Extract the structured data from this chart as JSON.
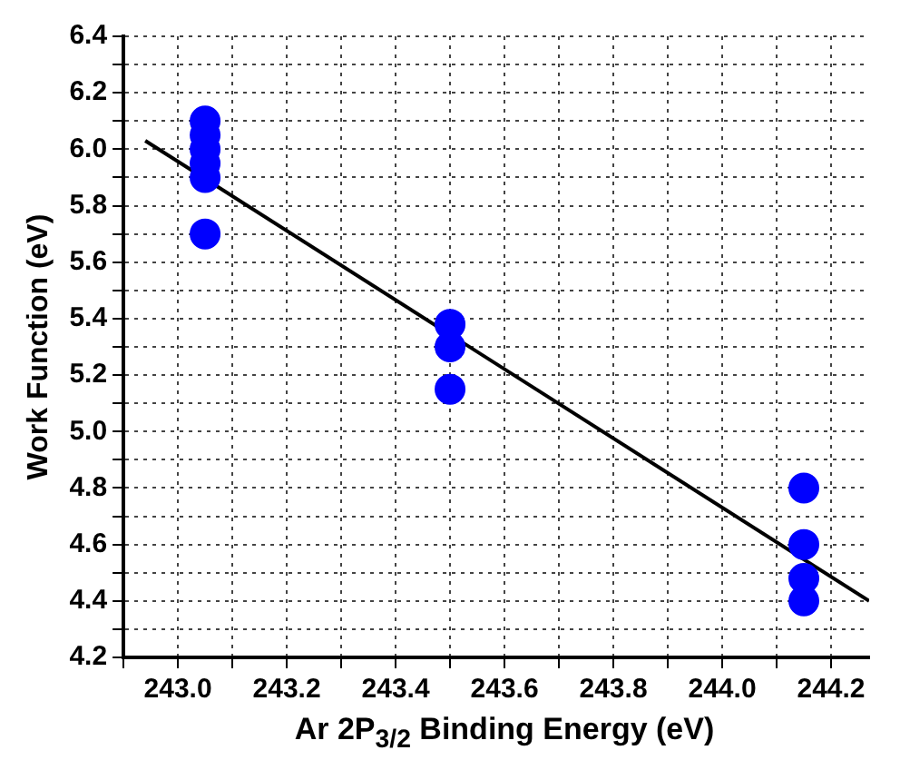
{
  "chart_data": {
    "type": "scatter",
    "xlabel": "Ar 2P$_{3/2}$ Binding Energy (eV)",
    "ylabel": "Work Function (eV)",
    "series": [
      {
        "marker": "circle",
        "color": "#0000ff",
        "x": [
          243.05,
          243.05,
          243.05,
          243.05,
          243.05,
          243.05,
          243.5,
          243.5,
          243.5,
          244.15,
          244.15,
          244.15,
          244.15
        ],
        "values": [
          6.1,
          6.05,
          6.0,
          5.95,
          5.9,
          5.7,
          5.38,
          5.3,
          5.15,
          4.8,
          4.6,
          4.48,
          4.4
        ]
      },
      {
        "type": "line",
        "color": "#000000",
        "x": [
          242.94,
          244.27
        ],
        "values": [
          6.03,
          4.4
        ]
      }
    ],
    "line_style": "solid",
    "grid": true,
    "legend": false,
    "xlim": [
      242.9,
      244.27
    ],
    "ylim": [
      4.2,
      6.4
    ],
    "xticks": [
      {
        "value": 242.9,
        "label": null
      },
      {
        "value": 243.0,
        "label": "243.0"
      },
      {
        "value": 243.1,
        "label": null
      },
      243.2,
      {
        "value": 243.3,
        "label": null
      },
      243.4,
      {
        "value": 243.5,
        "label": null
      },
      243.6,
      {
        "value": 243.7,
        "label": null
      },
      243.8,
      {
        "value": 243.9,
        "label": null
      },
      {
        "value": 244.0,
        "label": "244.0"
      },
      {
        "value": 244.1,
        "label": null
      },
      244.2
    ],
    "yticks": [
      4.2,
      {
        "value": 4.3,
        "label": null
      },
      4.4,
      {
        "value": 4.5,
        "label": null
      },
      4.6,
      {
        "value": 4.7,
        "label": null
      },
      4.8,
      {
        "value": 4.9,
        "label": null
      },
      {
        "value": 5.0,
        "label": "5.0"
      },
      {
        "value": 5.1,
        "label": null
      },
      5.2,
      {
        "value": 5.3,
        "label": null
      },
      5.4,
      {
        "value": 5.5,
        "label": null
      },
      5.6,
      {
        "value": 5.7,
        "label": null
      },
      5.8,
      {
        "value": 5.9,
        "label": null
      },
      {
        "value": 6.0,
        "label": "6.0"
      },
      {
        "value": 6.1,
        "label": null
      },
      6.2,
      {
        "value": 6.3,
        "label": null
      },
      6.4
    ]
  }
}
